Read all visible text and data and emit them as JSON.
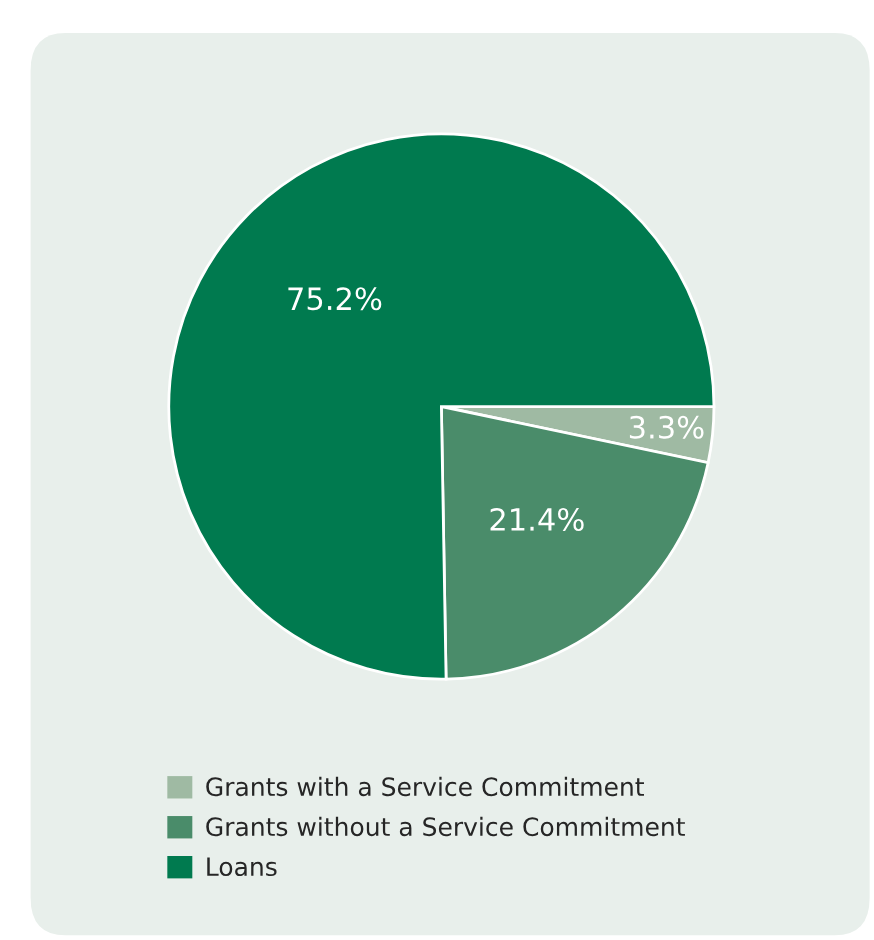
{
  "chart_data": {
    "type": "pie",
    "categories": [
      "Grants with a Service Commitment",
      "Grants without a Service Commitment",
      "Loans"
    ],
    "values": [
      3.3,
      21.4,
      75.2
    ],
    "colors": [
      "#9fbaa3",
      "#4a8c6a",
      "#007a4f"
    ],
    "value_labels": [
      "3.3%",
      "21.4%",
      "75.2%"
    ],
    "legend": "bottom"
  }
}
